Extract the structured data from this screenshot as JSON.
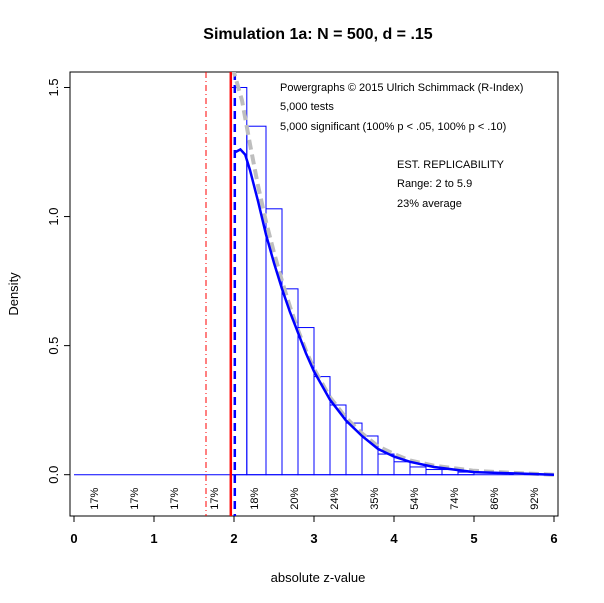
{
  "chart_data": {
    "type": "bar",
    "title": "Simulation 1a: N = 500, d = .15",
    "xlabel": "absolute z-value",
    "ylabel": "Density",
    "xlim": [
      -0.05,
      6.05
    ],
    "ylim": [
      -0.16,
      1.56
    ],
    "xticks": [
      0,
      1,
      2,
      3,
      4,
      5,
      6
    ],
    "yticks": [
      0.0,
      0.5,
      1.0,
      1.5
    ],
    "ytick_labels": [
      "0.0",
      "0.5",
      "1.0",
      "1.5"
    ],
    "grid": false,
    "histogram": {
      "color": "#0000ff",
      "bins": [
        {
          "x0": 1.96,
          "x1": 2.16,
          "density": 1.5
        },
        {
          "x0": 2.16,
          "x1": 2.4,
          "density": 1.35
        },
        {
          "x0": 2.4,
          "x1": 2.6,
          "density": 1.03
        },
        {
          "x0": 2.6,
          "x1": 2.8,
          "density": 0.72
        },
        {
          "x0": 2.8,
          "x1": 3.0,
          "density": 0.57
        },
        {
          "x0": 3.0,
          "x1": 3.2,
          "density": 0.38
        },
        {
          "x0": 3.2,
          "x1": 3.4,
          "density": 0.27
        },
        {
          "x0": 3.4,
          "x1": 3.6,
          "density": 0.2
        },
        {
          "x0": 3.6,
          "x1": 3.8,
          "density": 0.15
        },
        {
          "x0": 3.8,
          "x1": 4.0,
          "density": 0.08
        },
        {
          "x0": 4.0,
          "x1": 4.2,
          "density": 0.05
        },
        {
          "x0": 4.2,
          "x1": 4.4,
          "density": 0.03
        },
        {
          "x0": 4.4,
          "x1": 4.6,
          "density": 0.02
        },
        {
          "x0": 4.6,
          "x1": 4.8,
          "density": 0.02
        },
        {
          "x0": 4.8,
          "x1": 5.0,
          "density": 0.01
        }
      ]
    },
    "density_curve": {
      "color": "#0000ff",
      "points": [
        [
          2.02,
          1.25
        ],
        [
          2.08,
          1.26
        ],
        [
          2.14,
          1.24
        ],
        [
          2.2,
          1.18
        ],
        [
          2.3,
          1.06
        ],
        [
          2.4,
          0.93
        ],
        [
          2.5,
          0.82
        ],
        [
          2.6,
          0.72
        ],
        [
          2.7,
          0.63
        ],
        [
          2.8,
          0.55
        ],
        [
          2.9,
          0.47
        ],
        [
          3.0,
          0.4
        ],
        [
          3.2,
          0.29
        ],
        [
          3.4,
          0.21
        ],
        [
          3.6,
          0.15
        ],
        [
          3.8,
          0.1
        ],
        [
          4.0,
          0.07
        ],
        [
          4.2,
          0.05
        ],
        [
          4.5,
          0.03
        ],
        [
          5.0,
          0.01
        ],
        [
          5.5,
          0.005
        ],
        [
          6.0,
          0.0
        ]
      ]
    },
    "fitted_curve": {
      "color": "#bebebe",
      "style": "dashed",
      "points": [
        [
          1.98,
          1.58
        ],
        [
          2.1,
          1.45
        ],
        [
          2.2,
          1.28
        ],
        [
          2.3,
          1.12
        ],
        [
          2.4,
          0.98
        ],
        [
          2.5,
          0.86
        ],
        [
          2.6,
          0.75
        ],
        [
          2.7,
          0.65
        ],
        [
          2.8,
          0.56
        ],
        [
          2.9,
          0.48
        ],
        [
          3.0,
          0.41
        ],
        [
          3.2,
          0.3
        ],
        [
          3.4,
          0.22
        ],
        [
          3.6,
          0.16
        ],
        [
          3.8,
          0.11
        ],
        [
          4.0,
          0.08
        ],
        [
          4.2,
          0.055
        ],
        [
          4.5,
          0.035
        ],
        [
          5.0,
          0.015
        ],
        [
          5.5,
          0.007
        ],
        [
          6.0,
          0.0
        ]
      ]
    },
    "vertical_lines": [
      {
        "x": 1.65,
        "color": "#ff0000",
        "style": "dashdot"
      },
      {
        "x": 1.96,
        "color": "#ff0000",
        "style": "solid"
      },
      {
        "x": 2.01,
        "color": "#0000ff",
        "style": "dashed"
      }
    ],
    "baseline": {
      "color": "#0000ff",
      "x0": 0,
      "x1": 6
    },
    "annotations": [
      "Powergraphs © 2015 Ulrich Schimmack (R-Index)",
      "5,000 tests",
      "5,000 significant (100% p < .05, 100% p < .10)",
      "EST. REPLICABILITY",
      "Range: 2 to 5.9",
      "23% average"
    ],
    "percent_labels": [
      {
        "x": 0.25,
        "label": "17%"
      },
      {
        "x": 0.75,
        "label": "17%"
      },
      {
        "x": 1.25,
        "label": "17%"
      },
      {
        "x": 1.75,
        "label": "17%"
      },
      {
        "x": 2.25,
        "label": "18%"
      },
      {
        "x": 2.75,
        "label": "20%"
      },
      {
        "x": 3.25,
        "label": "24%"
      },
      {
        "x": 3.75,
        "label": "35%"
      },
      {
        "x": 4.25,
        "label": "54%"
      },
      {
        "x": 4.75,
        "label": "74%"
      },
      {
        "x": 5.25,
        "label": "86%"
      },
      {
        "x": 5.75,
        "label": "92%"
      }
    ]
  }
}
